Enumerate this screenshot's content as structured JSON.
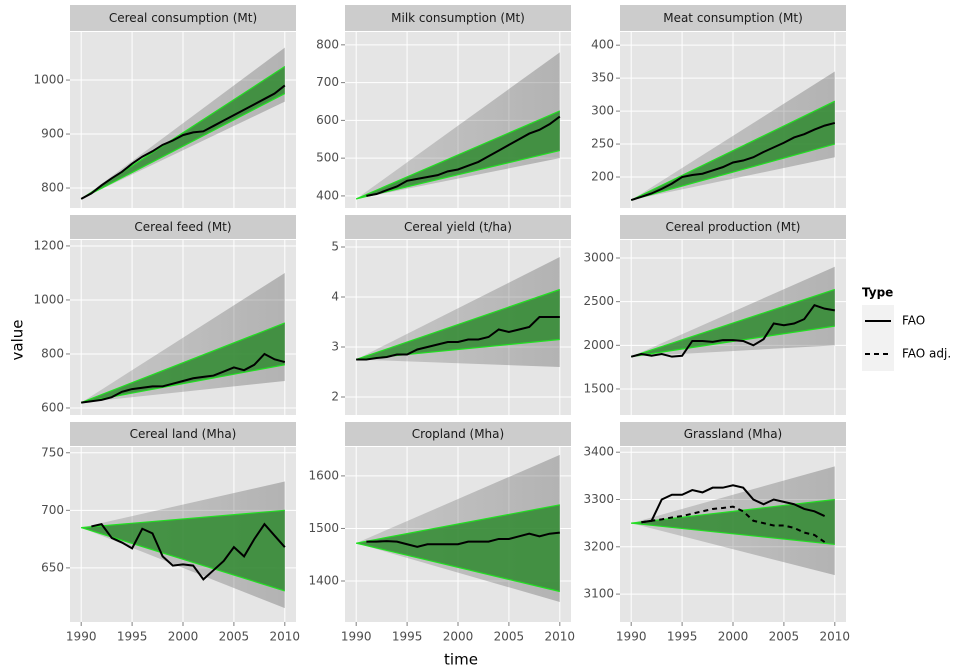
{
  "x_label": "time",
  "y_label": "value",
  "legend_title": "Type",
  "chart_data": [
    {
      "type": "line",
      "title": "Cereal consumption (Mt)",
      "xlim": [
        1988.9,
        2011.1
      ],
      "xticks": [
        1990,
        1995,
        2000,
        2005,
        2010
      ],
      "ylim": [
        763,
        1089
      ],
      "yticks": [
        800,
        900,
        1000
      ],
      "grid": true,
      "x": [
        1990,
        1991,
        1992,
        1993,
        1994,
        1995,
        1996,
        1997,
        1998,
        1999,
        2000,
        2001,
        2002,
        2003,
        2004,
        2005,
        2006,
        2007,
        2008,
        2009,
        2010
      ],
      "band": {
        "x": [
          1990,
          2010
        ],
        "lower": [
          780,
          975
        ],
        "upper": [
          780,
          1025
        ],
        "color": "#2f8a2f",
        "edge": "#22e022"
      },
      "spread": {
        "x": [
          1990,
          2010
        ],
        "lower": [
          780,
          960
        ],
        "upper": [
          780,
          1060
        ]
      },
      "series": [
        {
          "name": "FAO",
          "color": "#000000",
          "dash": false,
          "values": [
            780,
            790,
            805,
            818,
            830,
            845,
            858,
            868,
            880,
            888,
            898,
            903,
            905,
            915,
            925,
            935,
            945,
            955,
            965,
            975,
            990
          ]
        }
      ]
    },
    {
      "type": "line",
      "title": "Milk consumption (Mt)",
      "xlim": [
        1988.9,
        2011.1
      ],
      "xticks": [
        1990,
        1995,
        2000,
        2005,
        2010
      ],
      "ylim": [
        368,
        834
      ],
      "yticks": [
        400,
        500,
        600,
        700,
        800
      ],
      "grid": true,
      "x": [
        1990,
        1991,
        1992,
        1993,
        1994,
        1995,
        1996,
        1997,
        1998,
        1999,
        2000,
        2001,
        2002,
        2003,
        2004,
        2005,
        2006,
        2007,
        2008,
        2009,
        2010
      ],
      "band": {
        "x": [
          1990,
          2010
        ],
        "lower": [
          392,
          520
        ],
        "upper": [
          392,
          625
        ],
        "color": "#2f8a2f",
        "edge": "#22e022"
      },
      "spread": {
        "x": [
          1990,
          2010
        ],
        "lower": [
          392,
          500
        ],
        "upper": [
          392,
          780
        ]
      },
      "series": [
        {
          "name": "FAO",
          "color": "#000000",
          "dash": false,
          "values": [
            null,
            400,
            405,
            415,
            425,
            440,
            445,
            450,
            455,
            465,
            470,
            480,
            490,
            505,
            520,
            535,
            550,
            565,
            575,
            590,
            610
          ]
        }
      ]
    },
    {
      "type": "line",
      "title": "Meat consumption (Mt)",
      "xlim": [
        1988.9,
        2011.1
      ],
      "xticks": [
        1990,
        1995,
        2000,
        2005,
        2010
      ],
      "ylim": [
        153,
        420
      ],
      "yticks": [
        200,
        250,
        300,
        350,
        400
      ],
      "grid": true,
      "x": [
        1990,
        1991,
        1992,
        1993,
        1994,
        1995,
        1996,
        1997,
        1998,
        1999,
        2000,
        2001,
        2002,
        2003,
        2004,
        2005,
        2006,
        2007,
        2008,
        2009,
        2010
      ],
      "band": {
        "x": [
          1990,
          2010
        ],
        "lower": [
          165,
          250
        ],
        "upper": [
          165,
          315
        ],
        "color": "#2f8a2f",
        "edge": "#22e022"
      },
      "spread": {
        "x": [
          1990,
          2010
        ],
        "lower": [
          165,
          230
        ],
        "upper": [
          165,
          360
        ]
      },
      "series": [
        {
          "name": "FAO",
          "color": "#000000",
          "dash": false,
          "values": [
            165,
            170,
            175,
            182,
            190,
            200,
            203,
            205,
            210,
            215,
            222,
            225,
            230,
            238,
            245,
            252,
            260,
            265,
            272,
            278,
            282
          ]
        }
      ]
    },
    {
      "type": "line",
      "title": "Cereal feed (Mt)",
      "xlim": [
        1988.9,
        2011.1
      ],
      "xticks": [
        1990,
        1995,
        2000,
        2005,
        2010
      ],
      "ylim": [
        574,
        1222
      ],
      "yticks": [
        600,
        800,
        1000,
        1200
      ],
      "grid": true,
      "x": [
        1990,
        1991,
        1992,
        1993,
        1994,
        1995,
        1996,
        1997,
        1998,
        1999,
        2000,
        2001,
        2002,
        2003,
        2004,
        2005,
        2006,
        2007,
        2008,
        2009,
        2010
      ],
      "band": {
        "x": [
          1990,
          2010
        ],
        "lower": [
          620,
          760
        ],
        "upper": [
          620,
          915
        ],
        "color": "#2f8a2f",
        "edge": "#22e022"
      },
      "spread": {
        "x": [
          1990,
          2010
        ],
        "lower": [
          620,
          700
        ],
        "upper": [
          620,
          1100
        ]
      },
      "series": [
        {
          "name": "FAO",
          "color": "#000000",
          "dash": false,
          "values": [
            620,
            625,
            630,
            640,
            660,
            670,
            675,
            680,
            680,
            690,
            700,
            710,
            715,
            720,
            735,
            750,
            740,
            760,
            800,
            780,
            770
          ]
        }
      ]
    },
    {
      "type": "line",
      "title": "Cereal yield (t/ha)",
      "xlim": [
        1988.9,
        2011.1
      ],
      "xticks": [
        1990,
        1995,
        2000,
        2005,
        2010
      ],
      "ylim": [
        1.64,
        5.14
      ],
      "yticks": [
        2,
        3,
        4,
        5
      ],
      "grid": true,
      "x": [
        1990,
        1991,
        1992,
        1993,
        1994,
        1995,
        1996,
        1997,
        1998,
        1999,
        2000,
        2001,
        2002,
        2003,
        2004,
        2005,
        2006,
        2007,
        2008,
        2009,
        2010
      ],
      "band": {
        "x": [
          1990,
          2010
        ],
        "lower": [
          2.75,
          3.15
        ],
        "upper": [
          2.75,
          4.15
        ],
        "color": "#2f8a2f",
        "edge": "#22e022"
      },
      "spread": {
        "x": [
          1990,
          2010
        ],
        "lower": [
          2.75,
          2.6
        ],
        "upper": [
          2.75,
          4.8
        ]
      },
      "series": [
        {
          "name": "FAO",
          "color": "#000000",
          "dash": false,
          "values": [
            2.75,
            2.75,
            2.78,
            2.8,
            2.85,
            2.85,
            2.95,
            3.0,
            3.05,
            3.1,
            3.1,
            3.15,
            3.15,
            3.2,
            3.35,
            3.3,
            3.35,
            3.4,
            3.6,
            3.6,
            3.6
          ]
        }
      ]
    },
    {
      "type": "line",
      "title": "Cereal production (Mt)",
      "xlim": [
        1988.9,
        2011.1
      ],
      "xticks": [
        1990,
        1995,
        2000,
        2005,
        2010
      ],
      "ylim": [
        1202,
        3206
      ],
      "yticks": [
        1500,
        2000,
        2500,
        3000
      ],
      "grid": true,
      "x": [
        1990,
        1991,
        1992,
        1993,
        1994,
        1995,
        1996,
        1997,
        1998,
        1999,
        2000,
        2001,
        2002,
        2003,
        2004,
        2005,
        2006,
        2007,
        2008,
        2009,
        2010
      ],
      "band": {
        "x": [
          1990,
          2010
        ],
        "lower": [
          1870,
          2220
        ],
        "upper": [
          1870,
          2640
        ],
        "color": "#2f8a2f",
        "edge": "#22e022"
      },
      "spread": {
        "x": [
          1990,
          2010
        ],
        "lower": [
          1870,
          2000
        ],
        "upper": [
          1870,
          2900
        ]
      },
      "series": [
        {
          "name": "FAO",
          "color": "#000000",
          "dash": false,
          "values": [
            1870,
            1900,
            1880,
            1900,
            1870,
            1880,
            2050,
            2050,
            2040,
            2060,
            2060,
            2050,
            2000,
            2070,
            2250,
            2230,
            2250,
            2300,
            2460,
            2420,
            2400
          ]
        }
      ]
    },
    {
      "type": "line",
      "title": "Cereal land (Mha)",
      "xlim": [
        1988.9,
        2011.1
      ],
      "xticks": [
        1990,
        1995,
        2000,
        2005,
        2010
      ],
      "ylim": [
        603,
        755
      ],
      "yticks": [
        650,
        700,
        750
      ],
      "grid": true,
      "x": [
        1990,
        1991,
        1992,
        1993,
        1994,
        1995,
        1996,
        1997,
        1998,
        1999,
        2000,
        2001,
        2002,
        2003,
        2004,
        2005,
        2006,
        2007,
        2008,
        2009,
        2010
      ],
      "band": {
        "x": [
          1990,
          2010
        ],
        "lower": [
          685,
          630
        ],
        "upper": [
          685,
          700
        ],
        "color": "#2f8a2f",
        "edge": "#22e022"
      },
      "spread": {
        "x": [
          1990,
          2010
        ],
        "lower": [
          685,
          615
        ],
        "upper": [
          685,
          725
        ]
      },
      "series": [
        {
          "name": "FAO",
          "color": "#000000",
          "dash": false,
          "values": [
            null,
            686,
            688,
            676,
            672,
            667,
            684,
            680,
            660,
            652,
            653,
            652,
            640,
            648,
            656,
            668,
            660,
            675,
            688,
            678,
            668
          ]
        }
      ]
    },
    {
      "type": "line",
      "title": "Cropland (Mha)",
      "xlim": [
        1988.9,
        2011.1
      ],
      "xticks": [
        1990,
        1995,
        2000,
        2005,
        2010
      ],
      "ylim": [
        1322,
        1655
      ],
      "yticks": [
        1400,
        1500,
        1600
      ],
      "grid": true,
      "x": [
        1990,
        1991,
        1992,
        1993,
        1994,
        1995,
        1996,
        1997,
        1998,
        1999,
        2000,
        2001,
        2002,
        2003,
        2004,
        2005,
        2006,
        2007,
        2008,
        2009,
        2010
      ],
      "band": {
        "x": [
          1990,
          2010
        ],
        "lower": [
          1472,
          1380
        ],
        "upper": [
          1472,
          1545
        ],
        "color": "#2f8a2f",
        "edge": "#22e022"
      },
      "spread": {
        "x": [
          1990,
          2010
        ],
        "lower": [
          1472,
          1360
        ],
        "upper": [
          1472,
          1640
        ]
      },
      "series": [
        {
          "name": "FAO",
          "color": "#000000",
          "dash": false,
          "values": [
            null,
            1475,
            1475,
            1476,
            1475,
            1470,
            1465,
            1470,
            1470,
            1470,
            1470,
            1475,
            1475,
            1475,
            1480,
            1480,
            1485,
            1490,
            1485,
            1490,
            1492
          ]
        }
      ]
    },
    {
      "type": "line",
      "title": "Grassland (Mha)",
      "xlim": [
        1988.9,
        2011.1
      ],
      "xticks": [
        1990,
        1995,
        2000,
        2005,
        2010
      ],
      "ylim": [
        3041,
        3411
      ],
      "yticks": [
        3100,
        3200,
        3300,
        3400
      ],
      "grid": true,
      "x": [
        1990,
        1991,
        1992,
        1993,
        1994,
        1995,
        1996,
        1997,
        1998,
        1999,
        2000,
        2001,
        2002,
        2003,
        2004,
        2005,
        2006,
        2007,
        2008,
        2009,
        2010
      ],
      "band": {
        "x": [
          1990,
          2010
        ],
        "lower": [
          3250,
          3205
        ],
        "upper": [
          3250,
          3300
        ],
        "color": "#2f8a2f",
        "edge": "#22e022"
      },
      "spread": {
        "x": [
          1990,
          2010
        ],
        "lower": [
          3250,
          3140
        ],
        "upper": [
          3250,
          3370
        ]
      },
      "series": [
        {
          "name": "FAO",
          "color": "#000000",
          "dash": false,
          "values": [
            null,
            3252,
            3255,
            3300,
            3310,
            3310,
            3320,
            3315,
            3325,
            3325,
            3330,
            3325,
            3300,
            3290,
            3300,
            3295,
            3290,
            3280,
            3275,
            3265,
            null
          ]
        },
        {
          "name": "FAO adj.",
          "color": "#000000",
          "dash": true,
          "values": [
            null,
            3252,
            3255,
            3258,
            3262,
            3265,
            3270,
            3275,
            3280,
            3282,
            3285,
            3275,
            3255,
            3250,
            3245,
            3245,
            3240,
            3230,
            3225,
            3210,
            null
          ]
        }
      ]
    }
  ]
}
